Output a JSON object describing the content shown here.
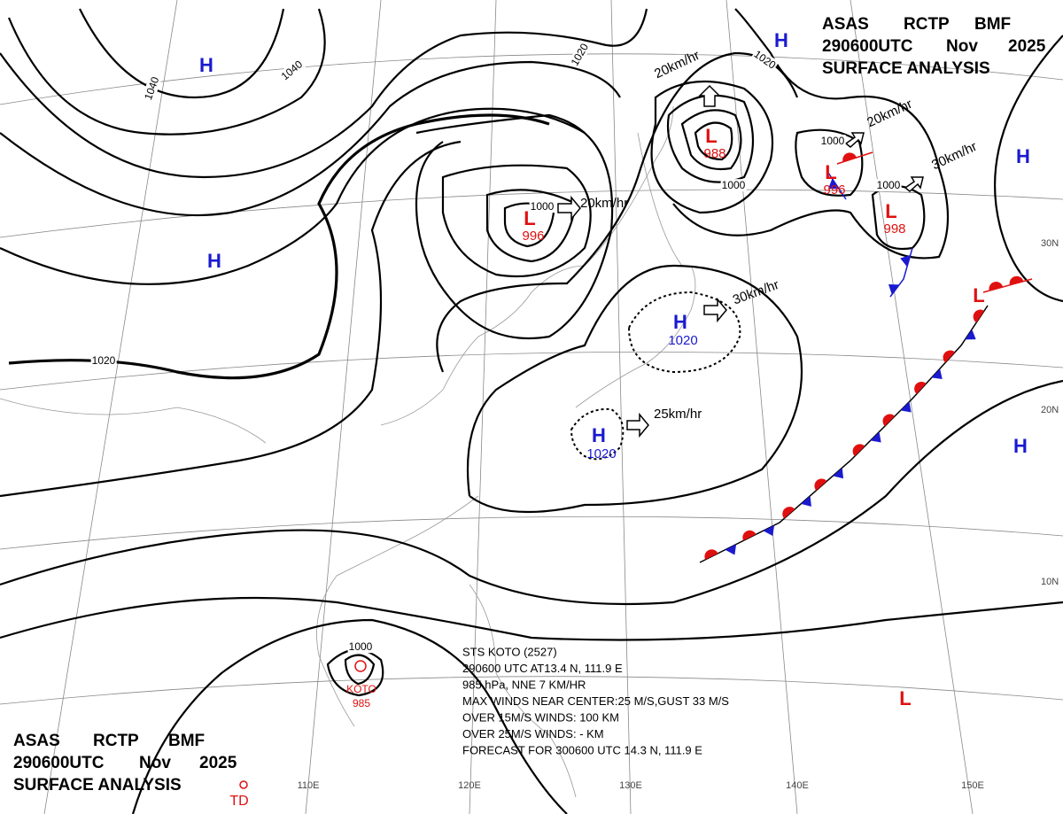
{
  "header": {
    "words": [
      "ASAS",
      "RCTP",
      "BMF"
    ],
    "time": "290600UTC",
    "month": "Nov",
    "year": "2025",
    "title": "SURFACE ANALYSIS"
  },
  "isobar_labels": [
    1040,
    1040,
    1020,
    1020,
    1020,
    1000,
    1000,
    1000,
    1000,
    1000
  ],
  "highs": [
    {
      "symbol": "H"
    },
    {
      "symbol": "H"
    },
    {
      "symbol": "H"
    },
    {
      "symbol": "H"
    },
    {
      "symbol": "H"
    },
    {
      "symbol": "H",
      "pressure": 1020
    },
    {
      "symbol": "H",
      "pressure": 1020
    }
  ],
  "lows": [
    {
      "symbol": "L",
      "pressure": 996
    },
    {
      "symbol": "L",
      "pressure": 988
    },
    {
      "symbol": "L",
      "pressure": 996
    },
    {
      "symbol": "L",
      "pressure": 998
    },
    {
      "symbol": "L"
    },
    {
      "symbol": "L"
    }
  ],
  "motion_labels": [
    "20km/hr",
    "20km/hr",
    "30km/hr",
    "20km/hr",
    "30km/hr",
    "25km/hr"
  ],
  "typhoon": {
    "lines": [
      "STS  KOTO  (2527)",
      "290600 UTC  AT13.4 N, 111.9 E",
      "985 hPa, NNE  7 KM/HR",
      "MAX WINDS NEAR CENTER:25 M/S,GUST 33 M/S",
      "OVER 15M/S WINDS: 100 KM",
      "OVER 25M/S WINDS: - KM",
      "FORECAST FOR 300600 UTC 14.3 N, 111.9 E"
    ],
    "name": "KOTO",
    "pressure": 985
  },
  "td_label": "TD",
  "latitude_labels": [
    "30N",
    "20N",
    "10N"
  ],
  "longitude_labels": [
    "110E",
    "120E",
    "130E",
    "140E",
    "150E"
  ]
}
